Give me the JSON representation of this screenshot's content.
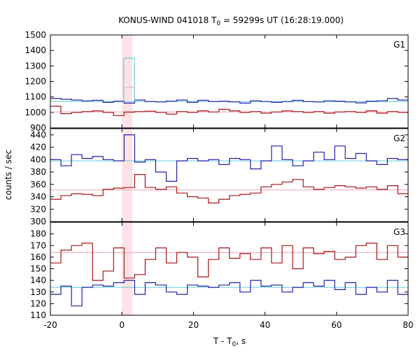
{
  "chart_data": {
    "type": "line",
    "title": "KONUS-WIND 041018 T",
    "title_sub": "0",
    "title_rest": " = 59299s UT (16:28:19.000)",
    "xlabel": "T - T",
    "xlabel_sub": "0",
    "xlabel_rest": ", s",
    "ylabel": "counts / sec",
    "xlim": [
      -20,
      80
    ],
    "x_ticks": [
      -20,
      0,
      20,
      40,
      60,
      80
    ],
    "x_tick_labels": [
      "-20",
      "0",
      "20",
      "40",
      "60",
      "80"
    ],
    "highlight_interval": [
      0,
      2.944
    ],
    "colors": {
      "blue": "#1f1fa8",
      "red": "#a81414",
      "cyan": "#5fcde4",
      "pink": "#f0a0b8",
      "highlight": "#fde3e6"
    },
    "panels": [
      {
        "label": "G1",
        "ylim": [
          900,
          1500
        ],
        "y_ticks": [
          900,
          1000,
          1100,
          1200,
          1300,
          1400,
          1500
        ],
        "y_tick_labels": [
          "900",
          "1000",
          "1100",
          "1200",
          "1300",
          "1400",
          "1500"
        ],
        "bin_width": 2.944,
        "series": [
          {
            "color": "blue",
            "bg_level": 1070,
            "bg_color": "cyan",
            "values": [
              1090,
              1085,
              1080,
              1075,
              1078,
              1065,
              1072,
              1060,
              1080,
              1070,
              1068,
              1073,
              1080,
              1065,
              1078,
              1070,
              1072,
              1068,
              1060,
              1075,
              1070,
              1065,
              1070,
              1078,
              1070,
              1068,
              1075,
              1072,
              1068,
              1062,
              1072,
              1075,
              1090,
              1080,
              1072,
              1075,
              1070,
              1065,
              1072,
              1080,
              1082,
              1085,
              1090,
              1088
            ]
          },
          {
            "color": "red",
            "bg_level": 1003,
            "bg_color": "pink",
            "values": [
              1040,
              992,
              1000,
              1005,
              1010,
              1000,
              980,
              1002,
              1005,
              1008,
              1000,
              990,
              1005,
              1000,
              1010,
              1003,
              1020,
              1010,
              1000,
              1005,
              995,
              1003,
              1010,
              1005,
              1000,
              1005,
              995,
              1003,
              1005,
              1000,
              1010,
              995,
              1005,
              1000,
              990,
              1003,
              1010,
              1005,
              1000,
              1005,
              1010,
              1003,
              1000,
              1005
            ]
          }
        ],
        "spike": {
          "x0": 0.5,
          "x1": 3.5,
          "value": 1350,
          "mid": 1162,
          "color": "cyan",
          "mid_color": "pink"
        }
      },
      {
        "label": "G2",
        "ylim": [
          300,
          450
        ],
        "y_ticks": [
          300,
          320,
          340,
          360,
          380,
          400,
          420,
          440
        ],
        "y_tick_labels": [
          "300",
          "320",
          "340",
          "360",
          "380",
          "400",
          "420",
          "440"
        ],
        "bin_width": 2.944,
        "series": [
          {
            "color": "blue",
            "bg_level": 398,
            "bg_color": "cyan",
            "values": [
              400,
              390,
              408,
              402,
              405,
              400,
              398,
              440,
              396,
              400,
              380,
              365,
              398,
              402,
              398,
              400,
              392,
              402,
              400,
              385,
              398,
              422,
              400,
              390,
              398,
              412,
              400,
              422,
              402,
              410,
              398,
              392,
              402,
              400,
              395,
              398,
              400,
              402,
              390,
              400,
              420,
              392,
              405,
              400
            ]
          },
          {
            "color": "red",
            "bg_level": 351,
            "bg_color": "pink",
            "values": [
              336,
              342,
              345,
              344,
              342,
              352,
              354,
              355,
              376,
              355,
              352,
              356,
              346,
              340,
              338,
              330,
              336,
              342,
              344,
              346,
              356,
              360,
              364,
              368,
              356,
              352,
              355,
              358,
              356,
              354,
              356,
              352,
              358,
              345,
              340,
              352,
              358,
              350,
              346,
              353,
              352,
              356,
              358,
              360
            ]
          }
        ]
      },
      {
        "label": "G3",
        "ylim": [
          110,
          190
        ],
        "y_ticks": [
          110,
          120,
          130,
          140,
          150,
          160,
          170,
          180
        ],
        "y_tick_labels": [
          "110",
          "120",
          "130",
          "140",
          "150",
          "160",
          "170",
          "180"
        ],
        "bin_width": 2.944,
        "series": [
          {
            "color": "red",
            "bg_level": 164,
            "bg_color": "pink",
            "values": [
              155,
              166,
              170,
              172,
              140,
              148,
              168,
              142,
              145,
              158,
              168,
              155,
              164,
              160,
              143,
              158,
              168,
              159,
              163,
              158,
              168,
              155,
              170,
              150,
              168,
              163,
              165,
              158,
              160,
              170,
              172,
              158,
              170,
              160,
              158,
              165,
              168,
              162,
              170,
              142,
              168,
              160,
              172,
              165
            ]
          },
          {
            "color": "blue",
            "bg_level": 134,
            "bg_color": "cyan",
            "values": [
              128,
              135,
              118,
              134,
              136,
              135,
              138,
              140,
              128,
              138,
              136,
              130,
              128,
              136,
              135,
              134,
              136,
              138,
              130,
              140,
              135,
              136,
              130,
              134,
              138,
              135,
              140,
              132,
              138,
              128,
              134,
              130,
              140,
              128,
              134,
              135,
              138,
              130,
              134,
              138,
              130,
              134,
              136,
              128
            ]
          }
        ]
      }
    ]
  }
}
